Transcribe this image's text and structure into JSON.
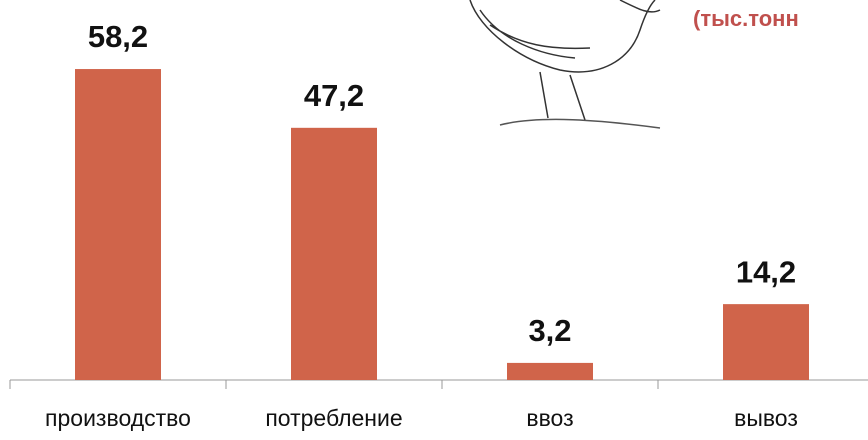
{
  "chart_data": {
    "type": "bar",
    "annotation": "(тыс.тонн",
    "categories": [
      "производство",
      "потребление",
      "ввоз",
      "вывоз"
    ],
    "values": [
      58.2,
      47.2,
      3.2,
      14.2
    ],
    "value_labels": [
      "58,2",
      "47,2",
      "3,2",
      "14,2"
    ],
    "color": "#d0644a",
    "ylim": [
      0,
      70
    ],
    "grid": false
  }
}
